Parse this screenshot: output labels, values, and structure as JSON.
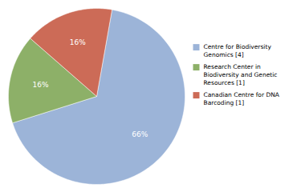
{
  "chart_data": {
    "type": "pie",
    "categories": [
      "Centre for Biodiversity\nGenomics [4]",
      "Research Center in\nBiodiversity and Genetic\nResources [1]",
      "Canadian Centre for DNA\nBarcoding [1]"
    ],
    "values": [
      66,
      16,
      16
    ],
    "value_labels": [
      "66%",
      "16%",
      "16%"
    ],
    "colors": [
      "#9cb4d8",
      "#8db068",
      "#cc6b57"
    ],
    "data_labels": true,
    "legend": "right"
  }
}
